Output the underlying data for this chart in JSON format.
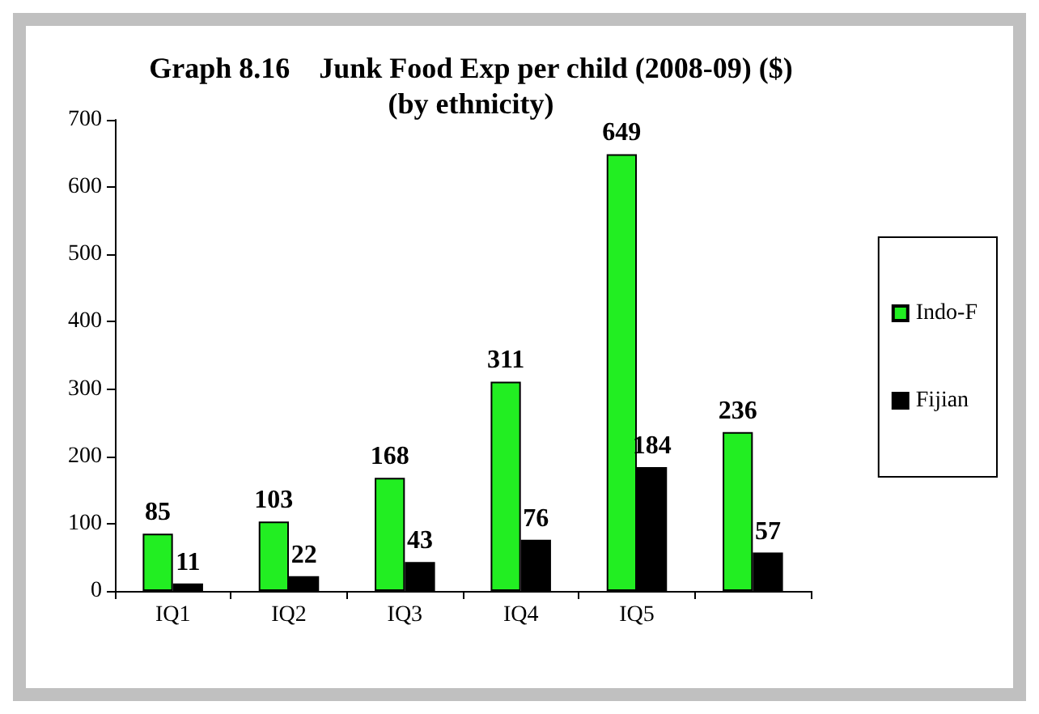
{
  "chart_data": {
    "type": "bar",
    "title": "Graph 8.16    Junk Food Exp per child (2008-09) ($)",
    "subtitle": "(by ethnicity)",
    "categories": [
      "IQ1",
      "IQ2",
      "IQ3",
      "IQ4",
      "IQ5",
      null
    ],
    "series": [
      {
        "name": "Indo-F",
        "color": "#22ee22",
        "values": [
          85,
          103,
          168,
          311,
          649,
          236
        ]
      },
      {
        "name": "Fijian",
        "color": "#000000",
        "values": [
          11,
          22,
          43,
          76,
          184,
          57
        ]
      }
    ],
    "ylim": [
      0,
      700
    ],
    "yticks": [
      0,
      100,
      200,
      300,
      400,
      500,
      600,
      700
    ],
    "grid": false,
    "legend": "right",
    "data_labels": true
  }
}
